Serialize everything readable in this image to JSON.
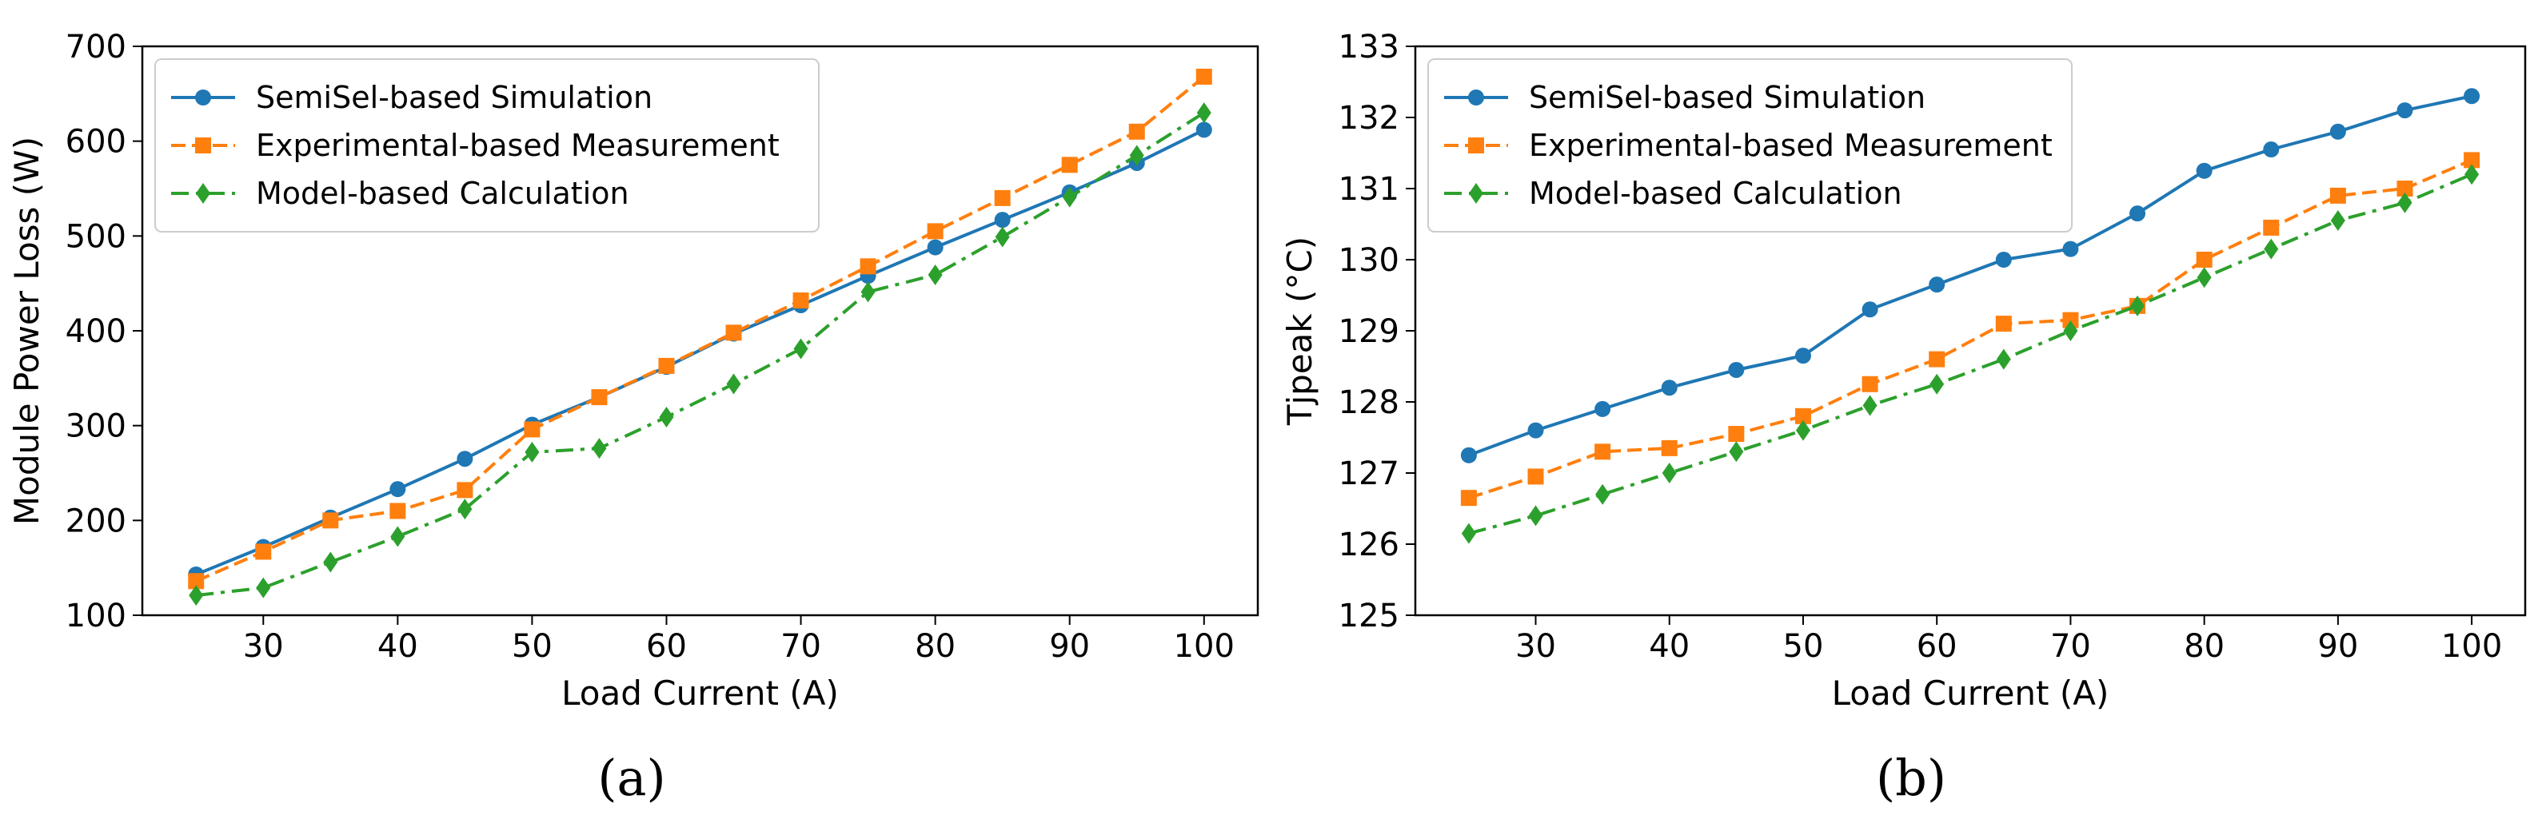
{
  "chart_data": [
    {
      "type": "line",
      "caption": "(a)",
      "xlabel": "Load Current (A)",
      "ylabel": "Module Power Loss (W)",
      "xlim": [
        21,
        104
      ],
      "ylim": [
        100,
        700
      ],
      "xticks": [
        30,
        40,
        50,
        60,
        70,
        80,
        90,
        100
      ],
      "yticks": [
        100,
        200,
        300,
        400,
        500,
        600,
        700
      ],
      "grid": false,
      "legend_position": "upper-left",
      "x": [
        25,
        30,
        35,
        40,
        45,
        50,
        55,
        60,
        65,
        70,
        75,
        80,
        85,
        90,
        95,
        100
      ],
      "series": [
        {
          "name": "SemiSel-based Simulation",
          "color": "#1f77b4",
          "line_style": "solid",
          "marker": "circle",
          "values": [
            143,
            172,
            203,
            233,
            265,
            301,
            330,
            362,
            397,
            427,
            458,
            488,
            517,
            546,
            577,
            612
          ]
        },
        {
          "name": "Experimental-based Measurement",
          "color": "#ff7f0e",
          "line_style": "dashed",
          "marker": "square",
          "values": [
            136,
            167,
            200,
            210,
            232,
            296,
            330,
            363,
            398,
            432,
            468,
            505,
            540,
            575,
            610,
            668
          ]
        },
        {
          "name": "Model-based Calculation",
          "color": "#2ca02c",
          "line_style": "dashdot",
          "marker": "diamond",
          "values": [
            121,
            129,
            156,
            183,
            212,
            272,
            276,
            309,
            344,
            381,
            441,
            459,
            499,
            541,
            585,
            630
          ]
        }
      ]
    },
    {
      "type": "line",
      "caption": "(b)",
      "xlabel": "Load Current (A)",
      "ylabel": "Tjpeak (°C)",
      "xlim": [
        21,
        104
      ],
      "ylim": [
        125,
        133
      ],
      "xticks": [
        30,
        40,
        50,
        60,
        70,
        80,
        90,
        100
      ],
      "yticks": [
        125,
        126,
        127,
        128,
        129,
        130,
        131,
        132,
        133
      ],
      "grid": false,
      "legend_position": "upper-left",
      "x": [
        25,
        30,
        35,
        40,
        45,
        50,
        55,
        60,
        65,
        70,
        75,
        80,
        85,
        90,
        95,
        100
      ],
      "series": [
        {
          "name": "SemiSel-based Simulation",
          "color": "#1f77b4",
          "line_style": "solid",
          "marker": "circle",
          "values": [
            127.25,
            127.6,
            127.9,
            128.2,
            128.45,
            128.65,
            129.3,
            129.65,
            130.0,
            130.15,
            130.65,
            131.25,
            131.55,
            131.8,
            132.1,
            132.3
          ]
        },
        {
          "name": "Experimental-based Measurement",
          "color": "#ff7f0e",
          "line_style": "dashed",
          "marker": "square",
          "values": [
            126.65,
            126.95,
            127.3,
            127.35,
            127.55,
            127.8,
            128.25,
            128.6,
            129.1,
            129.15,
            129.35,
            130.0,
            130.45,
            130.9,
            131.0,
            131.4
          ]
        },
        {
          "name": "Model-based Calculation",
          "color": "#2ca02c",
          "line_style": "dashdot",
          "marker": "diamond",
          "values": [
            126.15,
            126.4,
            126.7,
            127.0,
            127.3,
            127.6,
            127.95,
            128.25,
            128.6,
            129.0,
            129.35,
            129.75,
            130.15,
            130.55,
            130.8,
            131.2
          ]
        }
      ]
    }
  ]
}
